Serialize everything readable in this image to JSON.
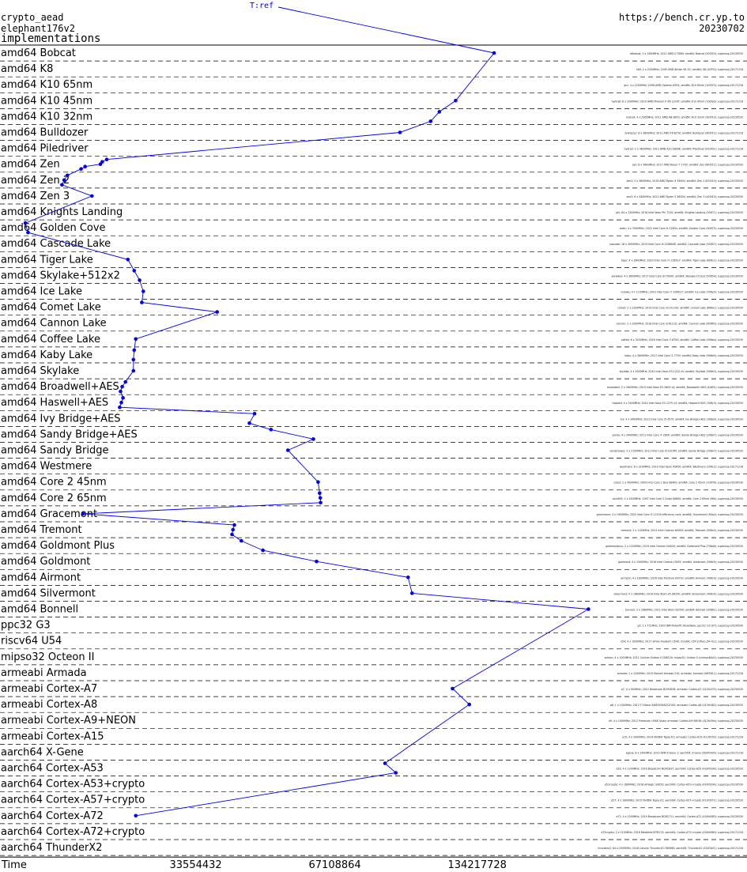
{
  "header": {
    "primitive": "crypto_aead",
    "algorithm": "elephant176v2",
    "section": "implementations",
    "site": "https://bench.cr.yp.to",
    "date": "20230702"
  },
  "chart_data": {
    "type": "line",
    "series_label": "T:ref",
    "xlabel": "Time",
    "x_ticks": [
      33554432,
      67108864,
      134217728
    ],
    "x_scale": "log2",
    "line_color": "#0000ee",
    "point_color": "#0000ee",
    "note_color_link": "#ff0000",
    "categories": [
      {
        "name": "amd64 Bobcat",
        "points": [
          155000000
        ]
      },
      {
        "name": "amd64 K8",
        "points": []
      },
      {
        "name": "amd64 K10 65nm",
        "points": []
      },
      {
        "name": "amd64 K10 45nm",
        "points": [
          128000000
        ]
      },
      {
        "name": "amd64 K10 32nm",
        "points": [
          118000000,
          113000000
        ]
      },
      {
        "name": "amd64 Bulldozer",
        "points": [
          97000000
        ]
      },
      {
        "name": "amd64 Piledriver",
        "points": []
      },
      {
        "name": "amd64 Zen",
        "points": [
          22500000,
          22000000,
          21800000,
          20200000,
          19800000
        ]
      },
      {
        "name": "amd64 Zen 2",
        "points": [
          18500000,
          18200000,
          18000000
        ]
      },
      {
        "name": "amd64 Zen 3",
        "points": [
          20900000
        ]
      },
      {
        "name": "amd64 Knights Landing",
        "points": []
      },
      {
        "name": "amd64 Golden Cove",
        "points": [
          15000000,
          15200000
        ]
      },
      {
        "name": "amd64 Cascade Lake",
        "points": []
      },
      {
        "name": "amd64 Tiger Lake",
        "points": [
          25000000
        ]
      },
      {
        "name": "amd64 Skylake+512x2",
        "points": [
          25800000,
          26500000
        ]
      },
      {
        "name": "amd64 Ice Lake",
        "points": [
          27000000
        ]
      },
      {
        "name": "amd64 Comet Lake",
        "points": [
          26800000,
          39000000
        ]
      },
      {
        "name": "amd64 Cannon Lake",
        "points": []
      },
      {
        "name": "amd64 Coffee Lake",
        "points": [
          26000000
        ]
      },
      {
        "name": "amd64 Kaby Lake",
        "points": [
          25800000,
          25700000
        ]
      },
      {
        "name": "amd64 Skylake",
        "points": [
          25700000
        ]
      },
      {
        "name": "amd64 Broadwell+AES",
        "points": [
          24700000,
          24300000,
          24100000
        ]
      },
      {
        "name": "amd64 Haswell+AES",
        "points": [
          24400000,
          24200000,
          24000000
        ]
      },
      {
        "name": "amd64 Ivy Bridge+AES",
        "points": [
          47000000,
          45800000
        ]
      },
      {
        "name": "amd64 Sandy Bridge+AES",
        "points": [
          51000000,
          63000000
        ]
      },
      {
        "name": "amd64 Sandy Bridge",
        "points": [
          55500000
        ]
      },
      {
        "name": "amd64 Westmere",
        "points": []
      },
      {
        "name": "amd64 Core 2 45nm",
        "points": [
          64500000
        ]
      },
      {
        "name": "amd64 Core 2 65nm",
        "points": [
          65000000,
          65200000,
          65300000
        ]
      },
      {
        "name": "amd64 Gracemont",
        "points": [
          20000000
        ]
      },
      {
        "name": "amd64 Tremont",
        "points": [
          42500000,
          42200000,
          42000000
        ]
      },
      {
        "name": "amd64 Goldmont Plus",
        "points": [
          44000000,
          49000000
        ]
      },
      {
        "name": "amd64 Goldmont",
        "points": [
          64000000
        ]
      },
      {
        "name": "amd64 Airmont",
        "points": [
          101000000
        ]
      },
      {
        "name": "amd64 Silvermont",
        "points": [
          103000000
        ]
      },
      {
        "name": "amd64 Bonnell",
        "points": [
          248000000
        ]
      },
      {
        "name": "ppc32 G3",
        "points": []
      },
      {
        "name": "riscv64 U54",
        "points": []
      },
      {
        "name": "mipso32 Octeon II",
        "points": []
      },
      {
        "name": "armeabi Armada",
        "points": []
      },
      {
        "name": "armeabi Cortex-A7",
        "points": [
          126000000
        ]
      },
      {
        "name": "armeabi Cortex-A8",
        "points": [
          137000000
        ]
      },
      {
        "name": "armeabi Cortex-A9+NEON",
        "points": []
      },
      {
        "name": "armeabi Cortex-A15",
        "points": []
      },
      {
        "name": "aarch64 X-Gene",
        "points": []
      },
      {
        "name": "aarch64 Cortex-A53",
        "points": [
          90000000,
          95000000
        ]
      },
      {
        "name": "aarch64 Cortex-A53+crypto",
        "points": []
      },
      {
        "name": "aarch64 Cortex-A57+crypto",
        "points": []
      },
      {
        "name": "aarch64 Cortex-A72",
        "points": [
          26000000
        ]
      },
      {
        "name": "aarch64 Cortex-A72+crypto",
        "points": []
      },
      {
        "name": "aarch64 ThunderX2",
        "points": []
      }
    ]
  },
  "machine_notes": [
    "bBobcat; 2 x 1650MHz; 2011 AMD G-T56N; amd64; Bobcat (500f20); supercop-20230530",
    "hk8; 2 x 2000MHz; 2005 AMD Athlon 64 X2; amd64; K8 (40f32); supercop-20171218",
    "gcc; 4 x 2200MHz; 2008 AMD Opteron 8354; amd64; K10 65nm (100f23); supercop-20171218",
    "hydra8; 6 x 3300MHz; 2010 AMD Phenom II X6 1100T; amd64; K10 45nm (100fa0); supercop-20171218",
    "hydra9; 4 x 2900MHz; 2011 AMD A8-3850; amd64; K10 32nm (300f10); supercop-20230530",
    "bulldozer; 8 x 3600MHz; 2011 AMD FX-8150; amd64; Bulldozer (600f12); supercop-20171218",
    "hydra3; 2 x 3600MHz; 2012 AMD A10-5800K; amd64; Piledriver (610f01); supercop-20171218",
    "zen; 8 x 3600MHz; 2017 AMD Ryzen 7 1700; amd64; Zen (800f11); supercop-20230530",
    "zen2; 2 x 3600MHz; 2019 AMD Ryzen 9 3900X; amd64; Zen 2 (870f10); supercop-20230530",
    "zen3; 6 x 3400MHz; 2021 AMD Ryzen 5 5600X; amd64; Zen 3 (a20f10); supercop-20230530",
    "phi; 64 x 1300MHz; 2016 Intel Xeon Phi 7210; amd64; Knights Landing (50671); supercop-20230530",
    "alder; 4 x 3300MHz; 2022 Intel Core i9-12900; amd64; Golden Cove (90675); supercop-20230530",
    "cascade; 18 x 3000MHz; 2019 Intel Core i9-10980XE; amd64; Cascade Lake (50657); supercop-20230530",
    "tiger; 4 x 2800MHz; 2020 Intel Core i7-1165G7; amd64; Tiger Lake (806c1); supercop-20230530",
    "skylakex; 4 x 3600MHz; 2017 Intel Core i9-7900X; amd64; Skylake+512x2 (50654); supercop-20230530",
    "icelake; 4 x 1100MHz; 2019 Intel Core i7-1065G7; amd64; Ice Lake (706e5); supercop-20230530",
    "comet; 2 x 2100MHz; 2019 Intel Core i3-10110U; amd64; Comet Lake (806ec); supercop-20230530",
    "cannon; 2 x 2200MHz; 2018 Intel Core i3-8121U; amd64; Cannon Lake (60663); supercop-20230530",
    "coffee; 6 x 3200MHz; 2018 Intel Core i7-8700; amd64; Coffee Lake (906ea); supercop-20230530",
    "kaby; 4 x 3600MHz; 2017 Intel Core i7-7700; amd64; Kaby Lake (906e9); supercop-20230530",
    "skylake; 4 x 3500MHz; 2015 Intel Xeon E3-1220 v5; amd64; Skylake (506e3); supercop-20230530",
    "broadwell; 2 x 2600MHz; 2015 Intel Xeon E5-2609 v4; amd64; Broadwell+AES (406f1); supercop-20230530",
    "haswell; 4 x 3400MHz; 2014 Intel Xeon E3-1275 v3; amd64; Haswell+AES (306c3); supercop-20230530",
    "ivy; 4 x 3400MHz; 2012 Intel Core i5-3570; amd64; Ivy Bridge+AES (306a9); supercop-20230530",
    "sandy; 4 x 3400MHz; 2011 Intel Core i7-2600; amd64; Sandy Bridge+AES (206a7); supercop-20230530",
    "sandynoaes; 2 x 2100MHz; 2011 Intel Core i3-2310M; amd64; Sandy Bridge (206a7); supercop-20230530",
    "westmere; 6 x 3200MHz; 2010 Intel Xeon X5650; amd64; Westmere (206c2); supercop-20171218",
    "core2; 2 x 3000MHz; 2009 Intel Core 2 Duo E8400; amd64; Core 2 45nm (10676); supercop-20230530",
    "core265; 2 x 2400MHz; 2007 Intel Core 2 Quad Q6600; amd64; Core 2 65nm (6fb); supercop-20230530",
    "gracemont; 4 x 1900MHz; 2022 Intel Core i3-1215U efficiency core; amd64; Gracemont (90a4); supercop-20230530",
    "tremont; 2 x 1100MHz; 2021 Intel Celeron N4500; amd64; Tremont (906c0); supercop-20230530",
    "goldmontplus; 2 x 1100MHz; 2019 Intel Celeron N4020; amd64; Goldmont Plus (706a8); supercop-20230530",
    "goldmont; 4 x 1500MHz; 2016 Intel Celeron J3455; amd64; Goldmont (506c9); supercop-20230530",
    "airmont; 4 x 1600MHz; 2016 Intel Pentium N3710; amd64; Airmont (406c4); supercop-20230530",
    "silvermont; 4 x 1660MHz; 2016 Intel Atom x5-Z8350; amd64; Silvermont (406c4); supercop-20230530",
    "bonnell; 2 x 1660MHz; 2011 Intel Atom D2500; amd64; Bonnell (30661); supercop-20230530",
    "g3; 1 x 721MHz; 2003 IBM PowerPC Broadway; ppc32; G3 (0?); supercop-20230530",
    "u54; 4 x 1000MHz; 2017 SiFive Freedom U540; riscv64; U54 (sifive,u54-mc); supercop-20230530",
    "octeon; 4 x 1000MHz; 2011 Cavium Octeon II CN6120; mipso32; Octeon II (cnmips64v2); supercop-20230530",
    "armada; 1 x 1200MHz; 2010 Marvell Armada 510; armeabi; Armada (56f5811); supercop-20171218",
    "a7; 4 x 900MHz; 2015 Broadcom BCM2836; armeabi; Cortex-A7 (410fc075); supercop-20230530",
    "a8; 1 x 1000MHz; 2012 TI Sitara XAM3359AZCZ100; armeabi; Cortex-A8 (413fc082); supercop-20230530",
    "a9; 4 x 1000MHz; 2012 Freescale i.MX6 Quad; armeabi; Cortex-A9+NEON (412fc09a); supercop-20230530",
    "a15; 4 x 2000MHz; 2014 NVIDIA Tegra K1; armeabi; Cortex-A15 (413fc0f3); supercop-20171218",
    "xgene; 8 x 2400MHz; 2014 APM X-Gene 1; aarch64; X-Gene (500f0000); supercop-20171218",
    "a53; 4 x 1200MHz; 2016 Broadcom BCM2837; aarch64; Cortex-A53 (410fd034); supercop-20230530",
    "a53crypto; 4 x 1800MHz; 2018 Amlogic S905X; aarch64; Cortex-A53+crypto (410fd034); supercop-20230530",
    "a57; 4 x 1900MHz; 2015 NVIDIA Tegra X1; aarch64; Cortex-A57+crypto (411fd071); supercop-20230530",
    "a72; 4 x 1500MHz; 2019 Broadcom BCM2711; aarch64; Cortex-A72 (410fd083); supercop-20230530",
    "a72crypto; 2 x 2100MHz; 2016 Mediatek MT8173; aarch64; Cortex-A72+crypto (410fd080); supercop-20171218",
    "thunderx2; 64 x 2500MHz; 2018 Cavium ThunderX2 CN9980; aarch64; ThunderX2 (431f0af1); supercop-20171218"
  ]
}
